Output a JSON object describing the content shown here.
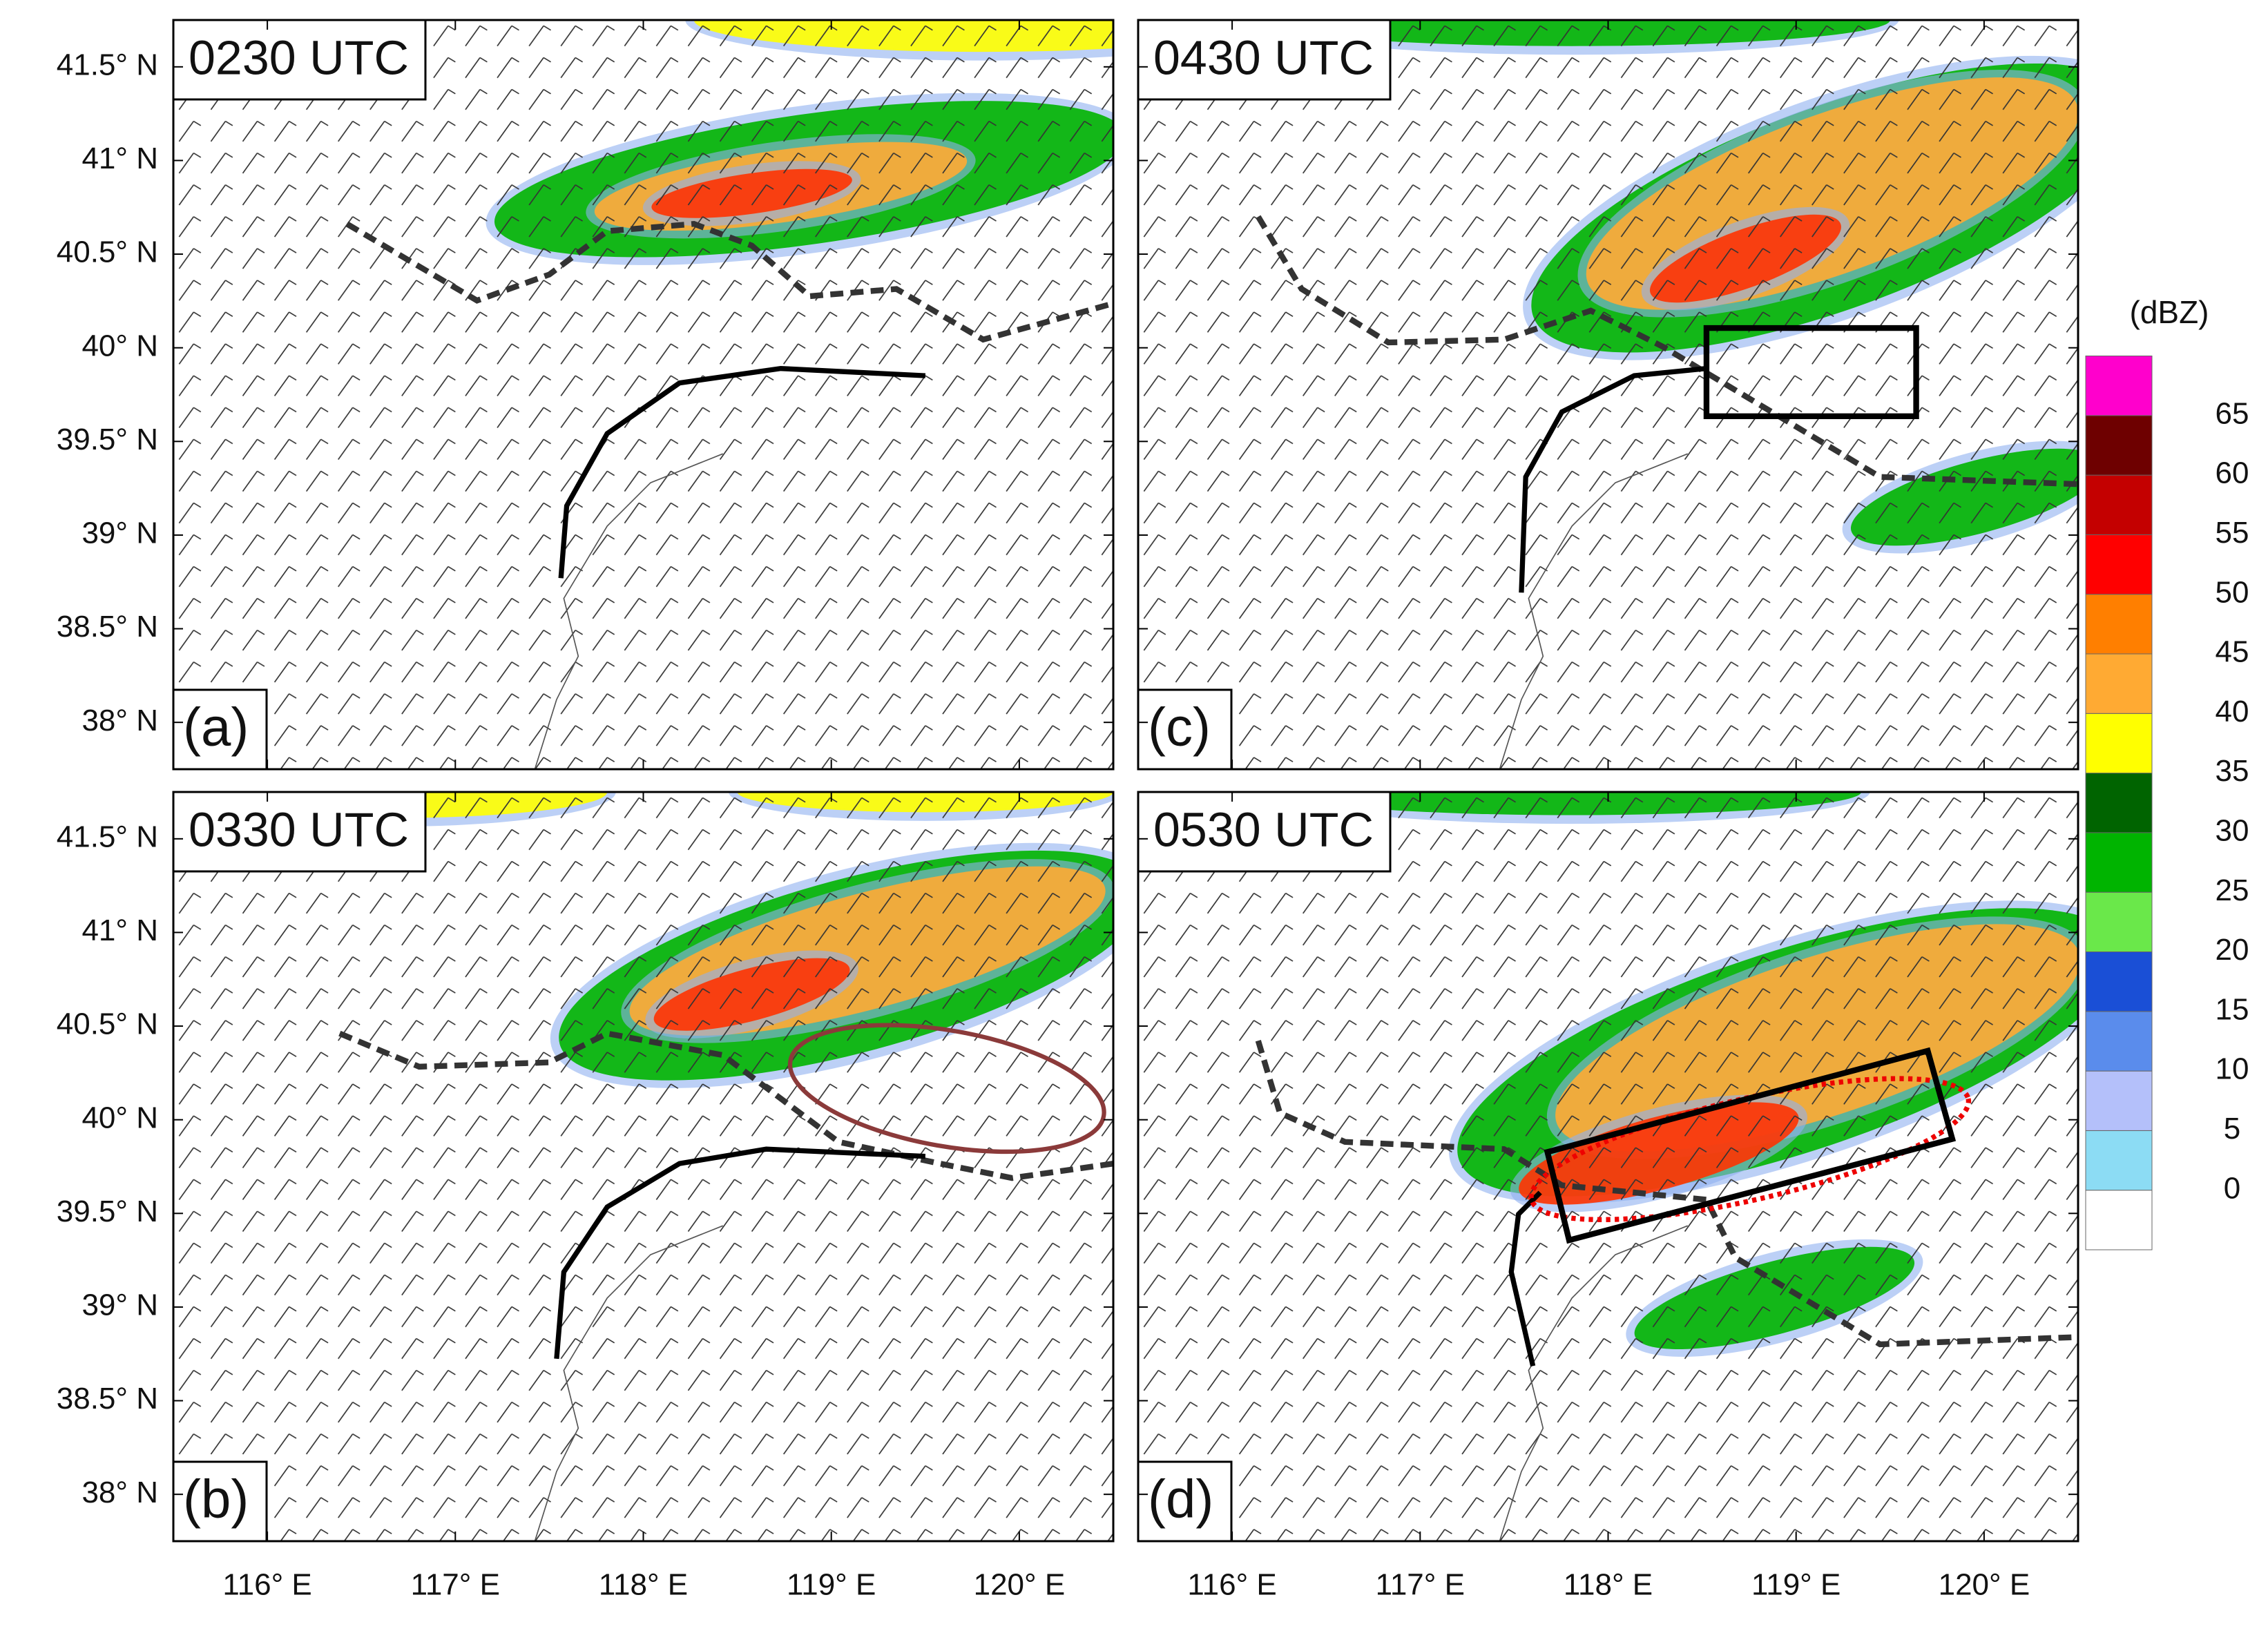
{
  "panels": [
    {
      "time": "0230 UTC",
      "letter": "(a)"
    },
    {
      "time": "0330 UTC",
      "letter": "(b)"
    },
    {
      "time": "0430 UTC",
      "letter": "(c)"
    },
    {
      "time": "0530 UTC",
      "letter": "(d)"
    }
  ],
  "map": {
    "xlim": [
      115.5,
      120.5
    ],
    "ylim": [
      37.75,
      41.75
    ],
    "xticks": [
      {
        "value": 116,
        "label": "116° E"
      },
      {
        "value": 117,
        "label": "117° E"
      },
      {
        "value": 118,
        "label": "118° E"
      },
      {
        "value": 119,
        "label": "119° E"
      },
      {
        "value": 120,
        "label": "120° E"
      }
    ],
    "yticks": [
      {
        "value": 38,
        "label": "38° N"
      },
      {
        "value": 38.5,
        "label": "38.5° N"
      },
      {
        "value": 39,
        "label": "39° N"
      },
      {
        "value": 39.5,
        "label": "39.5° N"
      },
      {
        "value": 40,
        "label": "40° N"
      },
      {
        "value": 40.5,
        "label": "40.5° N"
      },
      {
        "value": 41,
        "label": "41° N"
      },
      {
        "value": 41.5,
        "label": "41.5° N"
      }
    ]
  },
  "colorbar": {
    "title": "(dBZ)",
    "levels": [
      0,
      5,
      10,
      15,
      20,
      25,
      30,
      35,
      40,
      45,
      50,
      55,
      60,
      65
    ],
    "colors": [
      "#ffffff",
      "#8cdcf4",
      "#b4c0fa",
      "#5a8cec",
      "#1a4fd6",
      "#6ae84a",
      "#00b400",
      "#006400",
      "#ffff00",
      "#ffaa33",
      "#ff7f00",
      "#ff0000",
      "#c40000",
      "#6e0000",
      "#ff00cc"
    ]
  }
}
